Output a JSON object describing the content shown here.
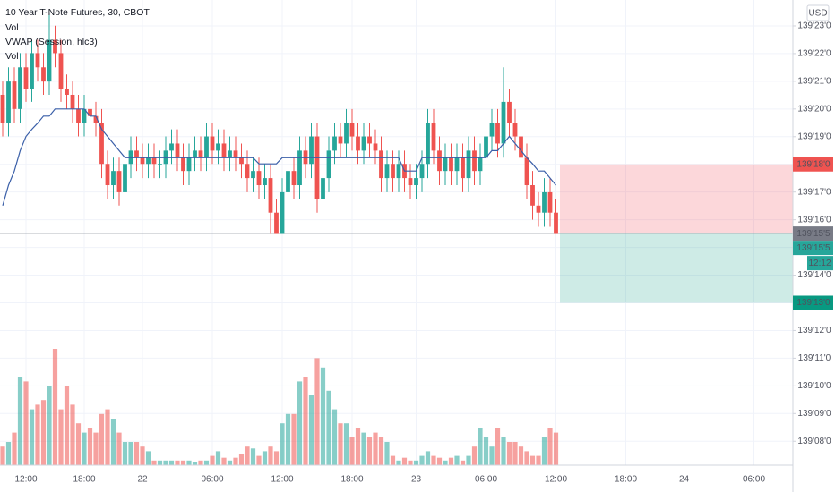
{
  "chart_data": {
    "type": "candlestick",
    "title": "10 Year T-Note Futures, 30, CBOT",
    "indicators": [
      "Vol",
      "VWAP (Session, hlc3)",
      "Vol"
    ],
    "currency": "USD",
    "categories": [
      null,
      null,
      null,
      null,
      "12:00",
      null,
      null,
      null,
      null,
      null,
      null,
      null,
      null,
      null,
      "18:00",
      null,
      null,
      null,
      null,
      null,
      null,
      null,
      null,
      null,
      "22",
      null,
      null,
      null,
      null,
      null,
      null,
      null,
      null,
      null,
      null,
      null,
      "06:00",
      null,
      null,
      null,
      null,
      null,
      null,
      null,
      null,
      null,
      null,
      null,
      "12:00",
      null,
      null,
      null,
      null,
      null,
      null,
      null,
      null,
      null,
      null,
      null,
      "18:00",
      null,
      null,
      null,
      null,
      null,
      null,
      null,
      null,
      null,
      null,
      "23",
      null,
      null,
      null,
      null,
      null,
      null,
      null,
      null,
      null,
      null,
      null,
      "06:00",
      null,
      null,
      null,
      null,
      null,
      null,
      null,
      null,
      null,
      null,
      null,
      "12:00",
      null,
      null,
      null,
      null,
      null,
      null,
      null,
      null,
      null,
      null,
      null,
      "18:00",
      null,
      null,
      null,
      null,
      null,
      null,
      null,
      null,
      null,
      "24",
      null,
      null,
      null,
      null,
      null,
      null,
      null,
      null,
      null,
      null,
      null,
      "06:00",
      null,
      null
    ],
    "open": [
      139.641,
      139.609,
      139.656,
      139.625,
      139.672,
      139.648,
      139.688,
      139.672,
      139.656,
      139.703,
      139.688,
      139.648,
      139.641,
      139.625,
      139.609,
      139.625,
      139.617,
      139.609,
      139.563,
      139.539,
      139.555,
      139.531,
      139.563,
      139.578,
      139.57,
      139.563,
      139.57,
      139.563,
      139.563,
      139.578,
      139.586,
      139.57,
      139.555,
      139.57,
      139.578,
      139.57,
      139.594,
      139.578,
      139.586,
      139.57,
      139.578,
      139.57,
      139.563,
      139.547,
      139.555,
      139.539,
      139.547,
      139.508,
      139.484,
      139.531,
      139.555,
      139.539,
      139.578,
      139.563,
      139.594,
      139.523,
      139.547,
      139.578,
      139.594,
      139.586,
      139.609,
      139.594,
      139.578,
      139.594,
      139.586,
      139.578,
      139.547,
      139.563,
      139.547,
      139.563,
      139.547,
      139.539,
      139.547,
      139.563,
      139.609,
      139.578,
      139.555,
      139.57,
      139.555,
      139.57,
      139.547,
      139.578,
      139.555,
      139.57,
      139.594,
      139.609,
      139.586,
      139.633,
      139.609,
      139.594,
      139.57,
      139.539,
      139.516,
      139.508,
      139.531,
      139.508,
      null,
      null,
      null,
      null,
      null,
      null,
      null,
      null,
      null,
      null,
      null,
      null,
      null,
      null,
      null,
      null,
      null,
      null,
      null,
      null,
      null,
      null,
      null,
      null,
      null,
      null,
      null,
      null,
      null,
      null,
      null,
      null,
      null,
      null,
      null,
      null
    ],
    "high": [
      139.656,
      139.672,
      139.672,
      139.688,
      139.688,
      139.703,
      139.703,
      139.688,
      139.734,
      139.719,
      139.703,
      139.664,
      139.656,
      139.641,
      139.641,
      139.641,
      139.633,
      139.625,
      139.578,
      139.57,
      139.57,
      139.578,
      139.594,
      139.594,
      139.586,
      139.586,
      139.586,
      139.578,
      139.594,
      139.602,
      139.602,
      139.586,
      139.586,
      139.594,
      139.594,
      139.609,
      139.609,
      139.602,
      139.602,
      139.594,
      139.594,
      139.586,
      139.578,
      139.57,
      139.57,
      139.563,
      139.563,
      139.523,
      139.547,
      139.57,
      139.57,
      139.594,
      139.594,
      139.609,
      139.609,
      139.563,
      139.594,
      139.609,
      139.609,
      139.625,
      139.625,
      139.609,
      139.609,
      139.609,
      139.602,
      139.594,
      139.578,
      139.578,
      139.578,
      139.578,
      139.563,
      139.563,
      139.578,
      139.625,
      139.625,
      139.594,
      139.586,
      139.586,
      139.586,
      139.586,
      139.594,
      139.594,
      139.586,
      139.609,
      139.625,
      139.625,
      139.672,
      139.648,
      139.625,
      139.609,
      139.586,
      139.555,
      139.531,
      139.547,
      139.547,
      139.523,
      null,
      null,
      null,
      null,
      null,
      null,
      null,
      null,
      null,
      null,
      null,
      null,
      null,
      null,
      null,
      null,
      null,
      null,
      null,
      null,
      null,
      null,
      null,
      null,
      null,
      null,
      null,
      null,
      null,
      null,
      null,
      null,
      null,
      null,
      null,
      null
    ],
    "low": [
      139.594,
      139.594,
      139.609,
      139.609,
      139.633,
      139.633,
      139.656,
      139.641,
      139.641,
      139.672,
      139.633,
      139.625,
      139.609,
      139.594,
      139.594,
      139.602,
      139.594,
      139.547,
      139.523,
      139.523,
      139.516,
      139.516,
      139.547,
      139.555,
      139.547,
      139.547,
      139.547,
      139.547,
      139.547,
      139.563,
      139.555,
      139.539,
      139.539,
      139.555,
      139.555,
      139.555,
      139.563,
      139.563,
      139.555,
      139.555,
      139.555,
      139.547,
      139.531,
      139.531,
      139.523,
      139.523,
      139.484,
      139.484,
      139.484,
      139.516,
      139.523,
      139.523,
      139.547,
      139.547,
      139.508,
      139.508,
      139.531,
      139.563,
      139.57,
      139.57,
      139.578,
      139.563,
      139.563,
      139.57,
      139.563,
      139.531,
      139.531,
      139.531,
      139.531,
      139.531,
      139.523,
      139.523,
      139.531,
      139.547,
      139.563,
      139.539,
      139.539,
      139.539,
      139.539,
      139.531,
      139.531,
      139.539,
      139.539,
      139.555,
      139.578,
      139.57,
      139.57,
      139.594,
      139.578,
      139.555,
      139.523,
      139.5,
      139.492,
      139.492,
      139.492,
      139.484,
      null,
      null,
      null,
      null,
      null,
      null,
      null,
      null,
      null,
      null,
      null,
      null,
      null,
      null,
      null,
      null,
      null,
      null,
      null,
      null,
      null,
      null,
      null,
      null,
      null,
      null,
      null,
      null,
      null,
      null,
      null,
      null,
      null,
      null,
      null,
      null
    ],
    "close": [
      139.609,
      139.656,
      139.625,
      139.672,
      139.648,
      139.688,
      139.672,
      139.656,
      139.703,
      139.688,
      139.648,
      139.641,
      139.625,
      139.609,
      139.625,
      139.617,
      139.609,
      139.563,
      139.539,
      139.555,
      139.531,
      139.563,
      139.578,
      139.57,
      139.563,
      139.57,
      139.563,
      139.563,
      139.578,
      139.586,
      139.57,
      139.555,
      139.57,
      139.578,
      139.57,
      139.594,
      139.578,
      139.586,
      139.57,
      139.578,
      139.57,
      139.563,
      139.547,
      139.555,
      139.539,
      139.547,
      139.508,
      139.484,
      139.531,
      139.555,
      139.539,
      139.578,
      139.563,
      139.594,
      139.523,
      139.547,
      139.578,
      139.594,
      139.586,
      139.609,
      139.594,
      139.578,
      139.594,
      139.586,
      139.578,
      139.547,
      139.563,
      139.547,
      139.563,
      139.547,
      139.539,
      139.547,
      139.563,
      139.609,
      139.578,
      139.555,
      139.57,
      139.555,
      139.57,
      139.547,
      139.578,
      139.555,
      139.57,
      139.594,
      139.609,
      139.586,
      139.633,
      139.609,
      139.594,
      139.57,
      139.539,
      139.516,
      139.508,
      139.531,
      139.508,
      139.484,
      null,
      null,
      null,
      null,
      null,
      null,
      null,
      null,
      null,
      null,
      null,
      null,
      null,
      null,
      null,
      null,
      null,
      null,
      null,
      null,
      null,
      null,
      null,
      null,
      null,
      null,
      null,
      null,
      null,
      null,
      null,
      null,
      null,
      null,
      null,
      null
    ],
    "up_color": "#26a69a",
    "down_color": "#ef5350",
    "vwap": {
      "color": "#3a5fa8",
      "values": [
        139.516,
        139.539,
        139.555,
        139.578,
        139.594,
        139.602,
        139.609,
        139.617,
        139.617,
        139.625,
        139.625,
        139.625,
        139.625,
        139.625,
        139.625,
        139.617,
        139.617,
        139.602,
        139.594,
        139.586,
        139.578,
        139.57,
        139.57,
        139.57,
        139.57,
        139.57,
        139.57,
        139.57,
        139.57,
        139.57,
        139.57,
        139.57,
        139.57,
        139.57,
        139.57,
        139.57,
        139.57,
        139.57,
        139.57,
        139.57,
        139.57,
        139.57,
        139.57,
        139.57,
        139.563,
        139.563,
        139.563,
        139.563,
        139.57,
        139.57,
        139.57,
        139.57,
        139.57,
        139.57,
        139.57,
        139.57,
        139.57,
        139.57,
        139.57,
        139.57,
        139.57,
        139.57,
        139.57,
        139.57,
        139.57,
        139.57,
        139.57,
        139.57,
        139.57,
        139.555,
        139.555,
        139.555,
        139.57,
        139.57,
        139.57,
        139.57,
        139.57,
        139.57,
        139.57,
        139.57,
        139.57,
        139.57,
        139.57,
        139.57,
        139.578,
        139.578,
        139.586,
        139.594,
        139.586,
        139.578,
        139.57,
        139.563,
        139.555,
        139.555,
        139.547,
        139.539,
        null,
        null,
        null,
        null,
        null,
        null,
        null,
        null,
        null,
        null,
        null,
        null,
        null,
        null,
        null,
        null,
        null,
        null,
        null,
        null,
        null,
        null,
        null,
        null,
        null,
        null,
        null,
        null,
        null,
        null,
        null,
        null,
        null,
        null,
        null,
        null
      ]
    },
    "volume": {
      "values": [
        20,
        25,
        35,
        95,
        90,
        60,
        65,
        70,
        85,
        125,
        60,
        85,
        65,
        45,
        35,
        40,
        35,
        55,
        60,
        50,
        35,
        25,
        25,
        25,
        20,
        15,
        5,
        5,
        5,
        5,
        5,
        5,
        5,
        3,
        5,
        5,
        10,
        15,
        8,
        5,
        8,
        12,
        20,
        18,
        10,
        15,
        20,
        15,
        45,
        55,
        55,
        90,
        95,
        75,
        115,
        105,
        80,
        60,
        45,
        45,
        30,
        40,
        35,
        30,
        35,
        30,
        25,
        10,
        5,
        8,
        5,
        5,
        10,
        15,
        10,
        8,
        5,
        8,
        10,
        5,
        10,
        20,
        40,
        30,
        20,
        40,
        30,
        25,
        25,
        20,
        15,
        10,
        10,
        30,
        40,
        35,
        null,
        null,
        null,
        null,
        null,
        null,
        null,
        null,
        null,
        null,
        null,
        null,
        null,
        null,
        null,
        null,
        null,
        null,
        null,
        null,
        null,
        null,
        null,
        null,
        null,
        null,
        null,
        null,
        null,
        null,
        null,
        null,
        null,
        null,
        null,
        null
      ]
    },
    "ylim": [
      139.223,
      139.748
    ],
    "yticks": [
      {
        "value": 139.71875,
        "label": "139'23'0"
      },
      {
        "value": 139.6875,
        "label": "139'22'0"
      },
      {
        "value": 139.65625,
        "label": "139'21'0"
      },
      {
        "value": 139.625,
        "label": "139'20'0"
      },
      {
        "value": 139.59375,
        "label": "139'19'0"
      },
      {
        "value": 139.5625,
        "label": "139'18'0"
      },
      {
        "value": 139.53125,
        "label": "139'17'0"
      },
      {
        "value": 139.5,
        "label": "139'16'0"
      },
      {
        "value": 139.46875,
        "label": "139'15'0"
      },
      {
        "value": 139.4375,
        "label": "139'14'0"
      },
      {
        "value": 139.40625,
        "label": "139'13'0"
      },
      {
        "value": 139.375,
        "label": "139'12'0"
      },
      {
        "value": 139.34375,
        "label": "139'11'0"
      },
      {
        "value": 139.3125,
        "label": "139'10'0"
      },
      {
        "value": 139.28125,
        "label": "139'09'0"
      },
      {
        "value": 139.25,
        "label": "139'08'0"
      }
    ],
    "grid": true,
    "position": {
      "stop": {
        "value": 139.5625,
        "label": "139'18'0"
      },
      "entry": {
        "value": 139.484375,
        "label": "139'15'5"
      },
      "target": {
        "value": 139.40625,
        "label": "139'13'0"
      }
    },
    "last_price": {
      "value": 139.484375,
      "label": "139'15'5"
    },
    "countdown": "12:12"
  }
}
